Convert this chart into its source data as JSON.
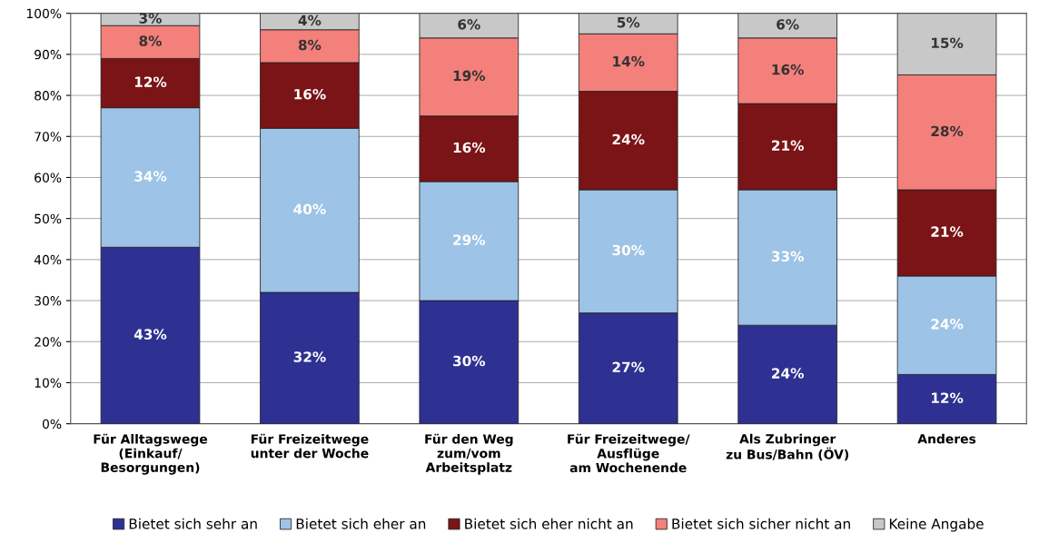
{
  "chart_data": {
    "type": "bar",
    "stacked": true,
    "categories": [
      "Für Alltagswege\n(Einkauf/\nBesorgungen)",
      "Für Freizeitwege\nunter der Woche",
      "Für den Weg\nzum/vom\nArbeitsplatz",
      "Für Freizeitwege/\nAusflüge\nam Wochenende",
      "Als Zubringer\nzu Bus/Bahn (ÖV)",
      "Anderes"
    ],
    "series": [
      {
        "name": "Bietet sich sehr an",
        "color": "#2e3192",
        "values": [
          43,
          32,
          30,
          27,
          24,
          12
        ],
        "value_labels": [
          "43%",
          "32%",
          "30%",
          "27%",
          "24%",
          "12%"
        ]
      },
      {
        "name": "Bietet sich eher an",
        "color": "#9dc3e6",
        "values": [
          34,
          40,
          29,
          30,
          33,
          24
        ],
        "value_labels": [
          "34%",
          "40%",
          "29%",
          "30%",
          "33%",
          "24%"
        ]
      },
      {
        "name": "Bietet sich eher nicht an",
        "color": "#7b1416",
        "values": [
          12,
          16,
          16,
          24,
          21,
          21
        ],
        "value_labels": [
          "12%",
          "16%",
          "16%",
          "24%",
          "21%",
          "21%"
        ]
      },
      {
        "name": "Bietet sich sicher nicht an",
        "color": "#f4807b",
        "values": [
          8,
          8,
          19,
          14,
          16,
          28
        ],
        "value_labels": [
          "8%",
          "8%",
          "19%",
          "14%",
          "16%",
          "28%"
        ]
      },
      {
        "name": "Keine Angabe",
        "color": "#c8c8c8",
        "values": [
          3,
          4,
          6,
          5,
          6,
          15
        ],
        "value_labels": [
          "3%",
          "4%",
          "6%",
          "5%",
          "6%",
          "15%"
        ]
      }
    ],
    "ylim": [
      0,
      100
    ],
    "yticks": [
      {
        "value": 0,
        "label": "0%"
      },
      {
        "value": 10,
        "label": "10%"
      },
      {
        "value": 20,
        "label": "20%"
      },
      {
        "value": 30,
        "label": "30%"
      },
      {
        "value": 40,
        "label": "40%"
      },
      {
        "value": 50,
        "label": "50%"
      },
      {
        "value": 60,
        "label": "60%"
      },
      {
        "value": 70,
        "label": "70%"
      },
      {
        "value": 80,
        "label": "80%"
      },
      {
        "value": 90,
        "label": "90%"
      },
      {
        "value": 100,
        "label": "100%"
      }
    ],
    "grid": "y",
    "legend": "bottom"
  }
}
